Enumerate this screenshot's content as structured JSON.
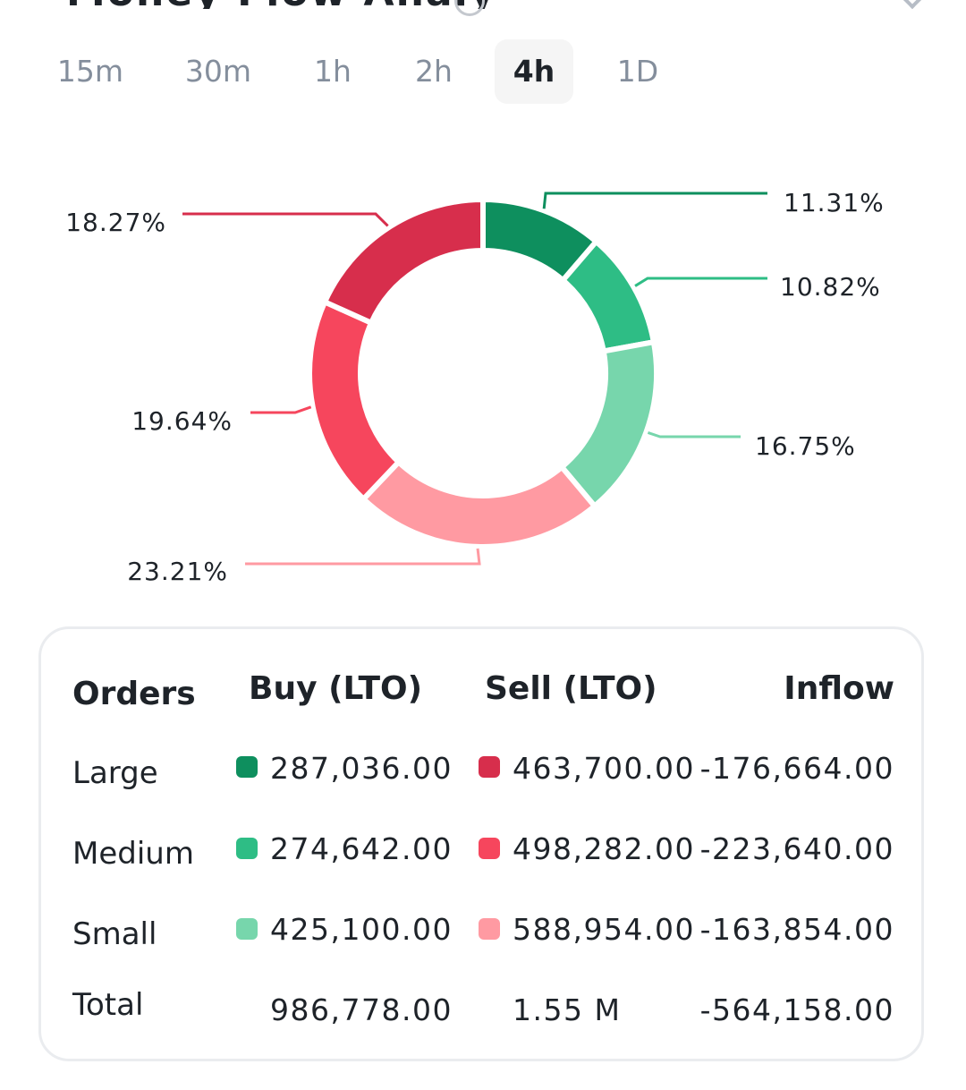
{
  "header": {
    "title_fragment": "Money Flow Analysis"
  },
  "tabs": [
    {
      "label": "15m",
      "active": false
    },
    {
      "label": "30m",
      "active": false
    },
    {
      "label": "1h",
      "active": false
    },
    {
      "label": "2h",
      "active": false
    },
    {
      "label": "4h",
      "active": true
    },
    {
      "label": "1D",
      "active": false
    }
  ],
  "chart_data": {
    "type": "pie",
    "style": "donut",
    "title": "",
    "categories": [
      "Buy Large",
      "Buy Medium",
      "Buy Small",
      "Sell Small",
      "Sell Medium",
      "Sell Large"
    ],
    "values": [
      11.31,
      10.82,
      16.75,
      23.21,
      19.64,
      18.27
    ],
    "labels": [
      "11.31%",
      "10.82%",
      "16.75%",
      "23.21%",
      "19.64%",
      "18.27%"
    ],
    "colors": [
      "#0e8f5e",
      "#2ebd85",
      "#77d6ac",
      "#ff9aa2",
      "#f6465d",
      "#d72e4c"
    ]
  },
  "table": {
    "headers": {
      "orders": "Orders",
      "buy": "Buy (LTO)",
      "sell": "Sell (LTO)",
      "inflow": "Inflow"
    },
    "rows": [
      {
        "label": "Large",
        "buy": "287,036.00",
        "sell": "463,700.00",
        "inflow": "-176,664.00",
        "buy_color": "#0e8f5e",
        "sell_color": "#d72e4c"
      },
      {
        "label": "Medium",
        "buy": "274,642.00",
        "sell": "498,282.00",
        "inflow": "-223,640.00",
        "buy_color": "#2ebd85",
        "sell_color": "#f6465d"
      },
      {
        "label": "Small",
        "buy": "425,100.00",
        "sell": "588,954.00",
        "inflow": "-163,854.00",
        "buy_color": "#77d6ac",
        "sell_color": "#ff9aa2"
      }
    ],
    "total": {
      "label": "Total",
      "buy": "986,778.00",
      "sell": "1.55 M",
      "inflow": "-564,158.00"
    }
  }
}
